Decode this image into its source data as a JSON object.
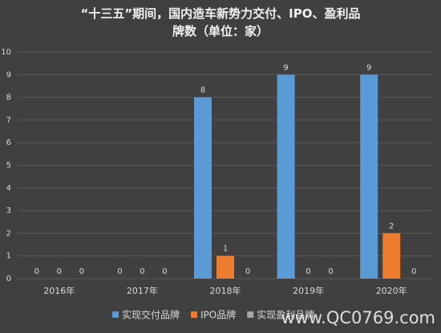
{
  "chart_data": {
    "type": "bar",
    "title": "“十三五”期间，国内造车新势力交付、IPO、盈利品牌数（单位：家）",
    "categories": [
      "2016年",
      "2017年",
      "2018年",
      "2019年",
      "2020年"
    ],
    "series": [
      {
        "name": "实现交付品牌",
        "color": "#5b9bd5",
        "values": [
          0,
          0,
          8,
          9,
          9
        ]
      },
      {
        "name": "IPO品牌",
        "color": "#ed7d31",
        "values": [
          0,
          0,
          1,
          0,
          2
        ]
      },
      {
        "name": "实现盈利品牌",
        "color": "#a5a5a5",
        "values": [
          0,
          0,
          0,
          0,
          0
        ]
      }
    ],
    "ylim": [
      0,
      10
    ],
    "yticks": [
      0,
      1,
      2,
      3,
      4,
      5,
      6,
      7,
      8,
      9,
      10
    ],
    "grid": true,
    "legend": "bottom",
    "watermark": "www.QC0769.com"
  }
}
